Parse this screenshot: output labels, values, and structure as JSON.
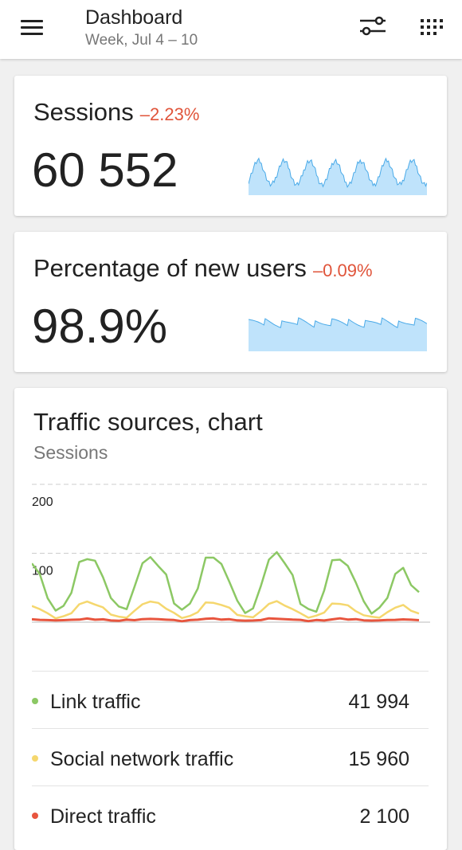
{
  "header": {
    "title": "Dashboard",
    "subtitle": "Week, Jul 4 – 10"
  },
  "metrics": [
    {
      "title": "Sessions",
      "change": "–2.23%",
      "value": "60 552"
    },
    {
      "title": "Percentage of new users",
      "change": "–0.09%",
      "value": "98.9%"
    }
  ],
  "traffic": {
    "title": "Traffic sources, chart",
    "subtitle": "Sessions",
    "legend": [
      {
        "label": "Link traffic",
        "value": "41 994",
        "color": "#8cc864"
      },
      {
        "label": "Social network traffic",
        "value": "15 960",
        "color": "#f5d76e"
      },
      {
        "label": "Direct traffic",
        "value": "2 100",
        "color": "#e8553e"
      }
    ]
  },
  "colors": {
    "accent_negative": "#e0543a",
    "sparkline_fill": "#bfe3fb",
    "sparkline_line": "#4aaae8"
  },
  "chart_data": {
    "type": "line",
    "title": "Traffic sources, chart",
    "subtitle": "Sessions",
    "y_ticks": [
      "200",
      "100"
    ],
    "ylim": [
      0,
      200
    ],
    "grid": true,
    "series": [
      {
        "name": "Link traffic",
        "color": "#8cc864",
        "values": [
          90,
          70,
          30,
          18,
          20,
          45,
          85,
          95,
          88,
          70,
          35,
          18,
          20,
          48,
          88,
          92,
          85,
          68,
          32,
          18,
          22,
          50,
          90,
          96,
          82,
          62,
          30,
          18,
          20,
          48,
          92,
          98,
          88,
          66,
          30,
          18,
          20,
          46,
          85,
          92,
          78,
          60,
          28,
          16,
          20,
          40,
          70,
          74,
          55,
          40
        ]
      },
      {
        "name": "Social network traffic",
        "color": "#f5d76e",
        "values": [
          22,
          20,
          12,
          7,
          8,
          15,
          26,
          28,
          26,
          20,
          12,
          7,
          8,
          16,
          28,
          30,
          26,
          20,
          12,
          7,
          8,
          16,
          28,
          30,
          25,
          19,
          11,
          7,
          8,
          15,
          28,
          30,
          26,
          19,
          11,
          7,
          8,
          15,
          26,
          28,
          24,
          18,
          10,
          6,
          7,
          13,
          22,
          24,
          18,
          12
        ]
      },
      {
        "name": "Direct traffic",
        "color": "#e8553e",
        "values": [
          4,
          4,
          3,
          2,
          3,
          3,
          4,
          5,
          4,
          4,
          3,
          2,
          3,
          3,
          4,
          5,
          4,
          4,
          3,
          2,
          3,
          3,
          5,
          5,
          4,
          4,
          3,
          2,
          3,
          3,
          5,
          5,
          4,
          4,
          3,
          2,
          3,
          3,
          4,
          5,
          4,
          4,
          3,
          2,
          3,
          3,
          4,
          4,
          3,
          3
        ]
      }
    ]
  }
}
